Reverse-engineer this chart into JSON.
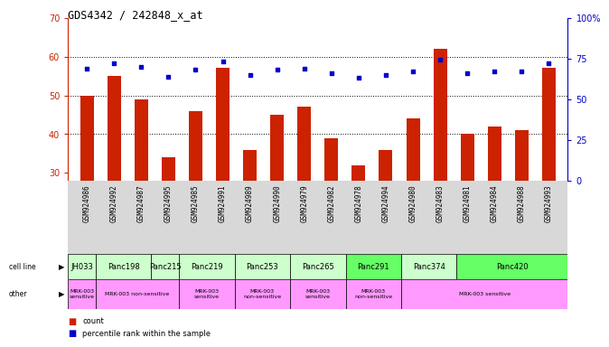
{
  "title": "GDS4342 / 242848_x_at",
  "samples": [
    "GSM924986",
    "GSM924992",
    "GSM924987",
    "GSM924995",
    "GSM924985",
    "GSM924991",
    "GSM924989",
    "GSM924990",
    "GSM924979",
    "GSM924982",
    "GSM924978",
    "GSM924994",
    "GSM924980",
    "GSM924983",
    "GSM924981",
    "GSM924984",
    "GSM924988",
    "GSM924993"
  ],
  "counts": [
    50,
    55,
    49,
    34,
    46,
    57,
    36,
    45,
    47,
    39,
    32,
    36,
    44,
    62,
    40,
    42,
    41,
    57
  ],
  "percentiles": [
    69,
    72,
    70,
    64,
    68,
    73,
    65,
    68,
    69,
    66,
    63,
    65,
    67,
    74,
    66,
    67,
    67,
    72
  ],
  "cell_lines": [
    "JH033",
    "Panc198",
    "Panc215",
    "Panc219",
    "Panc253",
    "Panc265",
    "Panc291",
    "Panc374",
    "Panc420"
  ],
  "cell_line_spans": [
    1,
    2,
    1,
    2,
    2,
    2,
    2,
    2,
    4
  ],
  "cell_line_colors": [
    "#ccffcc",
    "#ccffcc",
    "#ccffcc",
    "#ccffcc",
    "#ccffcc",
    "#ccffcc",
    "#66ff66",
    "#ccffcc",
    "#66ff66"
  ],
  "other_spans": [
    1,
    3,
    2,
    2,
    2,
    2,
    6
  ],
  "other_labels": [
    "MRK-003\nsensitive",
    "MRK-003 non-sensitive",
    "MRK-003\nsensitive",
    "MRK-003\nnon-sensitive",
    "MRK-003\nsensitive",
    "MRK-003\nnon-sensitive",
    "MRK-003 sensitive"
  ],
  "bar_color": "#cc2200",
  "dot_color": "#0000cc",
  "ylim_left": [
    28,
    70
  ],
  "ylim_right": [
    0,
    100
  ],
  "yticks_left": [
    30,
    40,
    50,
    60,
    70
  ],
  "yticks_right": [
    0,
    25,
    50,
    75,
    100
  ],
  "ytick_right_labels": [
    "0",
    "25",
    "50",
    "75",
    "100%"
  ],
  "grid_yticks": [
    40,
    50,
    60
  ],
  "tick_color_left": "#cc2200",
  "tick_color_right": "#0000cc",
  "sample_bg_color": "#d8d8d8",
  "cell_line_bg": "#ccffcc",
  "cell_line_hi": "#66ff66",
  "other_color": "#ff99ff",
  "header_bg": "#ffffff"
}
